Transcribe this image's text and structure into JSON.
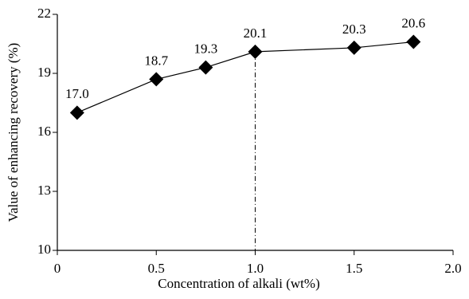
{
  "chart_data": {
    "type": "line",
    "x_label": "Concentration of alkali (wt%)",
    "y_label": "Value of enhancing recovery (%)",
    "x": [
      0.1,
      0.5,
      0.75,
      1.0,
      1.5,
      1.8
    ],
    "series": [
      {
        "color": "#000000",
        "values": [
          17.0,
          18.7,
          19.3,
          20.1,
          20.3,
          20.6
        ],
        "value_labels": [
          "17.0",
          "18.7",
          "19.3",
          "20.1",
          "20.3",
          "20.6"
        ]
      }
    ],
    "xlim": [
      0,
      2
    ],
    "xticks": [
      0,
      0.5,
      {
        "value": 1,
        "label": "1.0"
      },
      1.5,
      {
        "value": 2,
        "label": "2.0"
      }
    ],
    "ylim": [
      10,
      22
    ],
    "yticks": [
      10,
      13,
      16,
      19,
      22
    ],
    "grid": false
  }
}
